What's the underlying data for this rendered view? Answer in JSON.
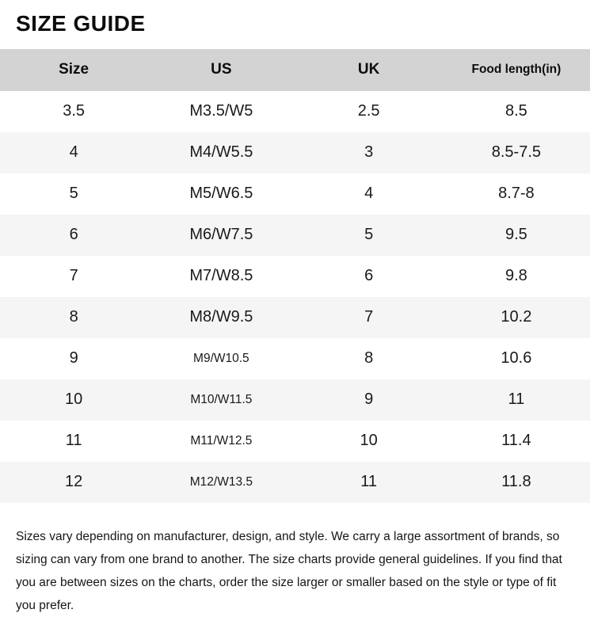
{
  "page": {
    "title": "SIZE GUIDE"
  },
  "table": {
    "columns": [
      "Size",
      "US",
      "UK",
      "Food length(in)"
    ],
    "rows": [
      [
        "3.5",
        "M3.5/W5",
        "2.5",
        "8.5"
      ],
      [
        "4",
        "M4/W5.5",
        "3",
        "8.5-7.5"
      ],
      [
        "5",
        "M5/W6.5",
        "4",
        "8.7-8"
      ],
      [
        "6",
        "M6/W7.5",
        "5",
        "9.5"
      ],
      [
        "7",
        "M7/W8.5",
        "6",
        "9.8"
      ],
      [
        "8",
        "M8/W9.5",
        "7",
        "10.2"
      ],
      [
        "9",
        "M9/W10.5",
        "8",
        "10.6"
      ],
      [
        "10",
        "M10/W11.5",
        "9",
        "11"
      ],
      [
        "11",
        "M11/W12.5",
        "10",
        "11.4"
      ],
      [
        "12",
        "M12/W13.5",
        "11",
        "11.8"
      ]
    ]
  },
  "footer": {
    "note": "Sizes vary depending on manufacturer, design, and style. We carry a large assortment of brands, so sizing can vary from one brand to another. The size charts provide general guidelines. If you find that you are between sizes on the charts, order the size larger or smaller based on the style or type of fit you prefer."
  },
  "colors": {
    "header_bg": "#d3d3d3",
    "alt_row_bg": "#f5f5f5",
    "text": "#111111",
    "background": "#ffffff"
  }
}
